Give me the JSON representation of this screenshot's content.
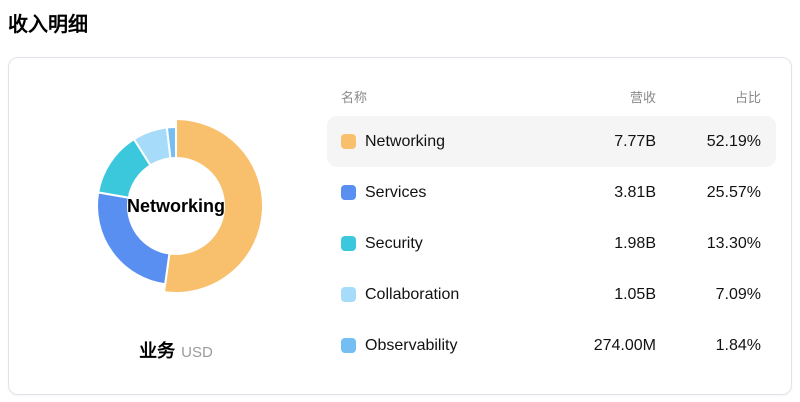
{
  "page_title": "收入明细",
  "card": {
    "chart": {
      "center_label": "Networking",
      "footer_label": "业务",
      "footer_unit": "USD"
    },
    "table": {
      "headers": {
        "name": "名称",
        "revenue": "营收",
        "share": "占比"
      },
      "rows": [
        {
          "name": "Networking",
          "revenue": "7.77B",
          "share": "52.19%",
          "color": "#F8C06D",
          "active": true
        },
        {
          "name": "Services",
          "revenue": "3.81B",
          "share": "25.57%",
          "color": "#5A8FF2",
          "active": false
        },
        {
          "name": "Security",
          "revenue": "1.98B",
          "share": "13.30%",
          "color": "#3CC8DC",
          "active": false
        },
        {
          "name": "Collaboration",
          "revenue": "1.05B",
          "share": "7.09%",
          "color": "#A7DBFA",
          "active": false
        },
        {
          "name": "Observability",
          "revenue": "274.00M",
          "share": "1.84%",
          "color": "#74BEF4",
          "active": false
        }
      ]
    }
  },
  "chart_data": {
    "type": "pie",
    "donut": true,
    "title": "收入明细",
    "dimension_label": "业务",
    "currency": "USD",
    "categories": [
      "Networking",
      "Services",
      "Security",
      "Collaboration",
      "Observability"
    ],
    "values": [
      52.19,
      25.57,
      13.3,
      7.09,
      1.84
    ],
    "value_unit": "%",
    "revenues": [
      "7.77B",
      "3.81B",
      "1.98B",
      "1.05B",
      "274.00M"
    ],
    "colors": [
      "#F8C06D",
      "#5A8FF2",
      "#3CC8DC",
      "#A7DBFA",
      "#74BEF4"
    ],
    "selected": "Networking",
    "selected_index": 0,
    "start_angle_deg": 0,
    "clockwise": true,
    "inner_radius_px": 48,
    "outer_radius_px": 79,
    "selected_outer_radius_px": 87,
    "legend_position": "right-table"
  }
}
